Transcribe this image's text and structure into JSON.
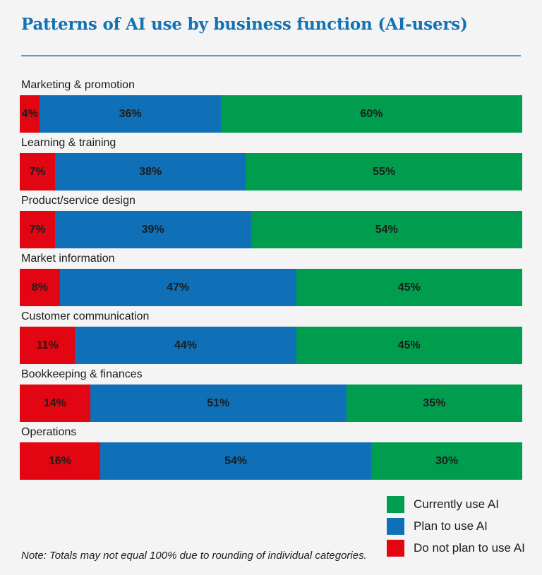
{
  "title": "Patterns of AI use by business function (AI-users)",
  "note": "Note: Totals may not equal 100% due to rounding  of individual categories.",
  "colors": {
    "background": "#f5f4f5",
    "title": "#1272b4",
    "divider": "#5b9bd5",
    "currently_use_ai": "#009d4f",
    "plan_to_use_ai": "#0f6fb7",
    "do_not_plan_to_use_ai": "#e20613",
    "bar_text": "#1d1d1b"
  },
  "legend": [
    {
      "label": "Currently use AI",
      "color": "#009d4f"
    },
    {
      "label": "Plan to use AI",
      "color": "#0f6fb7"
    },
    {
      "label": "Do not plan to use AI",
      "color": "#e20613"
    }
  ],
  "chart_data": {
    "type": "bar",
    "stacked": true,
    "orientation": "horizontal",
    "value_suffix": "%",
    "xlim": [
      0,
      100
    ],
    "grid": false,
    "legend_position": "bottom-right",
    "categories": [
      "Marketing & promotion",
      "Learning & training",
      "Product/service design",
      "Market information",
      "Customer communication",
      "Bookkeeping & finances",
      "Operations"
    ],
    "series": [
      {
        "name": "Do not plan to use AI",
        "key": "do-not-plan-to-use-ai",
        "color": "#e20613",
        "values": [
          4,
          7,
          7,
          8,
          11,
          14,
          16
        ]
      },
      {
        "name": "Plan to use AI",
        "key": "plan-to-use-ai",
        "color": "#0f6fb7",
        "values": [
          36,
          38,
          39,
          47,
          44,
          51,
          54
        ]
      },
      {
        "name": "Currently use AI",
        "key": "currently-use-ai",
        "color": "#009d4f",
        "values": [
          60,
          55,
          54,
          45,
          45,
          35,
          30
        ]
      }
    ]
  }
}
